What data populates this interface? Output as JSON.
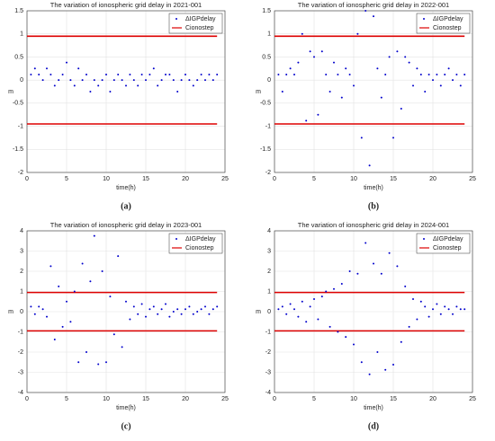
{
  "chart_data": [
    {
      "type": "scatter",
      "title": "The variation of ionospheric grid delay in 2021-001",
      "caption": "(a)",
      "x_label": "time(h)",
      "y_label": "m",
      "xlim": [
        0,
        25
      ],
      "xticks": [
        0,
        5,
        10,
        15,
        20,
        25
      ],
      "ylim": [
        -2,
        1.5
      ],
      "yticks": [
        -2,
        -1.5,
        -1,
        -0.5,
        0,
        0.5,
        1,
        1.5
      ],
      "grid": true,
      "legend": "upper right",
      "series": [
        {
          "name": "ΔIGPdelay",
          "color": "#0000cc",
          "x": [
            0.5,
            1,
            1.5,
            2,
            2.5,
            3,
            3.5,
            4,
            4.5,
            5,
            5.5,
            6,
            6.5,
            7,
            7.5,
            8,
            8.5,
            9,
            9.5,
            10,
            10.5,
            11,
            11.5,
            12,
            12.5,
            13,
            13.5,
            14,
            14.5,
            15,
            15.5,
            16,
            16.5,
            17,
            17.5,
            18,
            18.5,
            19,
            19.5,
            20,
            20.5,
            21,
            21.5,
            22,
            22.5,
            23,
            23.5,
            24
          ],
          "values": [
            0.12,
            0.25,
            0.12,
            0,
            0.25,
            0.12,
            -0.12,
            0,
            0.12,
            0.38,
            0,
            -0.12,
            0.25,
            0,
            0.12,
            -0.25,
            0,
            -0.12,
            0,
            0.12,
            -0.25,
            0,
            0.12,
            0,
            -0.12,
            0.12,
            0,
            -0.12,
            0.12,
            0,
            0.12,
            0.25,
            -0.12,
            0,
            0.12,
            0.12,
            0,
            -0.25,
            0,
            0.12,
            0,
            -0.12,
            0,
            0.12,
            0,
            0.12,
            0,
            0.12
          ]
        }
      ],
      "hline": {
        "name": "Cionostep",
        "color": "#dd0000",
        "x": [
          0,
          24
        ],
        "values": [
          0.95,
          -0.95
        ]
      }
    },
    {
      "type": "scatter",
      "title": "The variation of ionospheric grid delay in 2022-001",
      "caption": "(b)",
      "x_label": "time(h)",
      "y_label": "m",
      "xlim": [
        0,
        25
      ],
      "xticks": [
        0,
        5,
        10,
        15,
        20,
        25
      ],
      "ylim": [
        -2,
        1.5
      ],
      "yticks": [
        -2,
        -1.5,
        -1,
        -0.5,
        0,
        0.5,
        1,
        1.5
      ],
      "grid": true,
      "legend": "upper right",
      "series": [
        {
          "name": "ΔIGPdelay",
          "color": "#0000cc",
          "x": [
            0.5,
            1,
            1.5,
            2,
            2.5,
            3,
            3.5,
            4,
            4.5,
            5,
            5.5,
            6,
            6.5,
            7,
            7.5,
            8,
            8.5,
            9,
            9.5,
            10,
            10.5,
            11,
            11.5,
            12,
            12.5,
            13,
            13.5,
            14,
            14.5,
            15,
            15.5,
            16,
            16.5,
            17,
            17.5,
            18,
            18.5,
            19,
            19.5,
            20,
            20.5,
            21,
            21.5,
            22,
            22.5,
            23,
            23.5,
            24
          ],
          "values": [
            0.12,
            -0.25,
            0.12,
            0.25,
            0.12,
            0.38,
            1.0,
            -0.88,
            0.62,
            0.5,
            -0.75,
            0.62,
            0.12,
            -0.25,
            0.38,
            0.12,
            -0.38,
            0.25,
            0.12,
            -0.12,
            1.0,
            -1.25,
            1.5,
            -1.85,
            1.38,
            0.25,
            -0.38,
            0.12,
            0.5,
            -1.25,
            0.62,
            -0.62,
            0.5,
            0.38,
            -0.12,
            0.25,
            0.12,
            -0.25,
            0.12,
            0,
            0.12,
            -0.12,
            0.12,
            0.25,
            0,
            0.12,
            -0.12,
            0.12
          ]
        }
      ],
      "hline": {
        "name": "Cionostep",
        "color": "#dd0000",
        "x": [
          0,
          24
        ],
        "values": [
          0.95,
          -0.95
        ]
      }
    },
    {
      "type": "scatter",
      "title": "The variation of ionospheric grid delay in 2023-001",
      "caption": "(c)",
      "x_label": "time(h)",
      "y_label": "m",
      "xlim": [
        0,
        25
      ],
      "xticks": [
        0,
        5,
        10,
        15,
        20,
        25
      ],
      "ylim": [
        -4,
        4
      ],
      "yticks": [
        -4,
        -3,
        -2,
        -1,
        0,
        1,
        2,
        3,
        4
      ],
      "grid": true,
      "legend": "upper right",
      "series": [
        {
          "name": "ΔIGPdelay",
          "color": "#0000cc",
          "x": [
            0.5,
            1,
            1.5,
            2,
            2.5,
            3,
            3.5,
            4,
            4.5,
            5,
            5.5,
            6,
            6.5,
            7,
            7.5,
            8,
            8.5,
            9,
            9.5,
            10,
            10.5,
            11,
            11.5,
            12,
            12.5,
            13,
            13.5,
            14,
            14.5,
            15,
            15.5,
            16,
            16.5,
            17,
            17.5,
            18,
            18.5,
            19,
            19.5,
            20,
            20.5,
            21,
            21.5,
            22,
            22.5,
            23,
            23.5,
            24
          ],
          "values": [
            0.25,
            -0.12,
            0.25,
            0.12,
            -0.25,
            2.25,
            -1.38,
            1.25,
            -0.75,
            0.5,
            -0.5,
            1.0,
            -2.5,
            2.38,
            -2.0,
            1.5,
            3.75,
            -2.6,
            2.0,
            -2.5,
            0.75,
            -1.12,
            2.75,
            -1.75,
            0.5,
            -0.38,
            0.25,
            -0.12,
            0.38,
            -0.25,
            0.12,
            0.25,
            -0.12,
            0.12,
            0.38,
            -0.25,
            0,
            0.12,
            -0.12,
            0.12,
            0.25,
            -0.12,
            0,
            0.12,
            0.25,
            -0.12,
            0.12,
            0.25
          ]
        }
      ],
      "hline": {
        "name": "Cionostep",
        "color": "#dd0000",
        "x": [
          0,
          24
        ],
        "values": [
          0.95,
          -0.95
        ]
      }
    },
    {
      "type": "scatter",
      "title": "The variation of ionospheric grid delay in 2024-001",
      "caption": "(d)",
      "x_label": "time(h)",
      "y_label": "m",
      "xlim": [
        0,
        25
      ],
      "xticks": [
        0,
        5,
        10,
        15,
        20,
        25
      ],
      "ylim": [
        -4,
        4
      ],
      "yticks": [
        -4,
        -3,
        -2,
        -1,
        0,
        1,
        2,
        3,
        4
      ],
      "grid": true,
      "legend": "upper right",
      "series": [
        {
          "name": "ΔIGPdelay",
          "color": "#0000cc",
          "x": [
            0.5,
            1,
            1.5,
            2,
            2.5,
            3,
            3.5,
            4,
            4.5,
            5,
            5.5,
            6,
            6.5,
            7,
            7.5,
            8,
            8.5,
            9,
            9.5,
            10,
            10.5,
            11,
            11.5,
            12,
            12.5,
            13,
            13.5,
            14,
            14.5,
            15,
            15.5,
            16,
            16.5,
            17,
            17.5,
            18,
            18.5,
            19,
            19.5,
            20,
            20.5,
            21,
            21.5,
            22,
            22.5,
            23,
            23.5,
            24
          ],
          "values": [
            0.12,
            0.25,
            -0.12,
            0.38,
            0.12,
            -0.25,
            0.5,
            -0.5,
            0.25,
            0.62,
            -0.38,
            0.75,
            1.0,
            -0.75,
            1.12,
            -1.0,
            1.38,
            -1.25,
            2.0,
            -1.62,
            1.88,
            -2.5,
            3.4,
            -3.1,
            2.38,
            -2.0,
            1.88,
            -2.88,
            2.9,
            -2.62,
            2.25,
            -1.5,
            1.25,
            -0.75,
            0.62,
            -0.38,
            0.5,
            0.25,
            -0.25,
            0.12,
            0.38,
            -0.12,
            0.25,
            0.12,
            -0.12,
            0.25,
            0.12,
            0.12
          ]
        }
      ],
      "hline": {
        "name": "Cionostep",
        "color": "#dd0000",
        "x": [
          0,
          24
        ],
        "values": [
          0.95,
          -0.95
        ]
      }
    }
  ]
}
